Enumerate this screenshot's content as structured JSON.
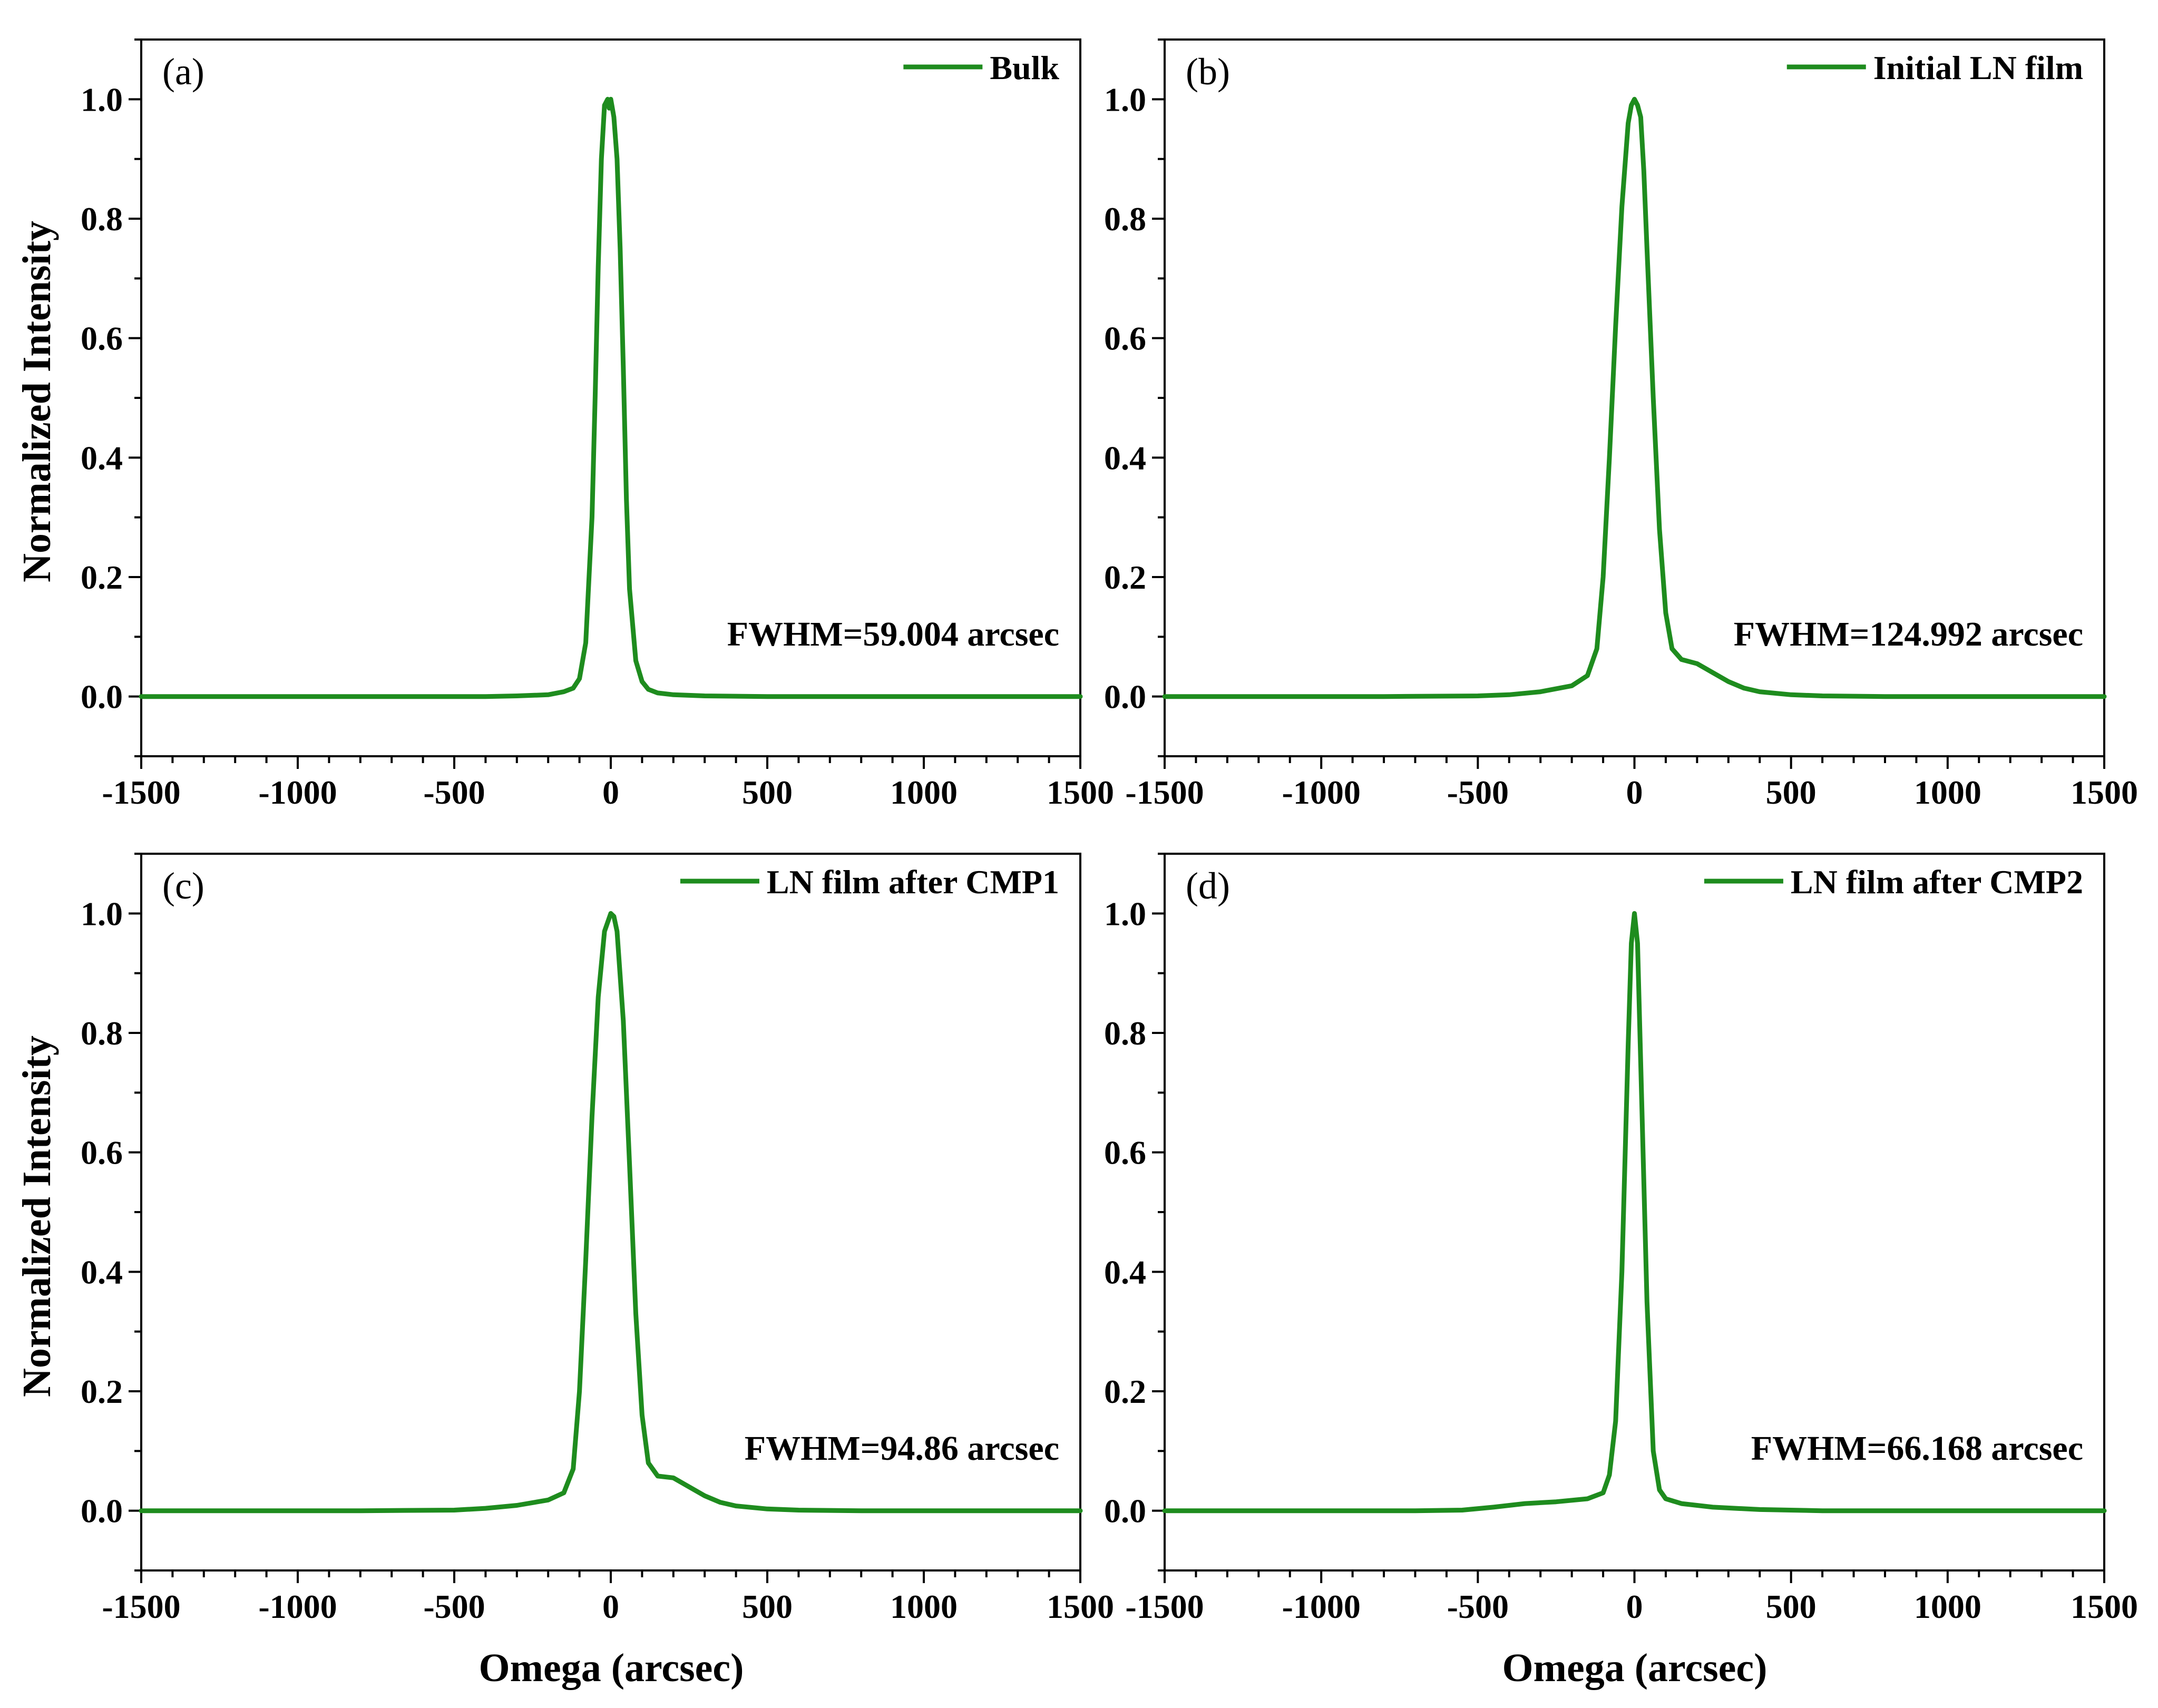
{
  "figure": {
    "ylabel": "Normalized Intensity",
    "xlabel": "Omega (arcsec)"
  },
  "style": {
    "line_color": "#1e8c1e",
    "axis_color": "#000000",
    "background": "#ffffff"
  },
  "chart_data": [
    {
      "type": "line",
      "panel_label": "(a)",
      "annotation": "FWHM=59.004 arcsec",
      "series": [
        {
          "name": "Bulk",
          "x": [
            -1500,
            -600,
            -400,
            -300,
            -200,
            -150,
            -120,
            -100,
            -80,
            -60,
            -50,
            -40,
            -30,
            -20,
            -10,
            -5,
            0,
            5,
            10,
            20,
            30,
            40,
            50,
            60,
            80,
            100,
            120,
            150,
            200,
            300,
            500,
            1500
          ],
          "y": [
            0,
            0,
            0,
            0.001,
            0.003,
            0.008,
            0.014,
            0.03,
            0.09,
            0.3,
            0.5,
            0.72,
            0.9,
            0.99,
            1.0,
            0.985,
            1.0,
            0.985,
            0.97,
            0.9,
            0.75,
            0.55,
            0.33,
            0.18,
            0.06,
            0.025,
            0.012,
            0.006,
            0.003,
            0.001,
            0,
            0
          ]
        }
      ],
      "xlim": [
        -1500,
        1500
      ],
      "ylim": [
        -0.1,
        1.1
      ],
      "xticks": [
        -1500,
        -1000,
        -500,
        0,
        500,
        1000,
        1500
      ],
      "yticks": [
        0.0,
        0.2,
        0.4,
        0.6,
        0.8,
        1.0
      ],
      "legend_position": "top-right"
    },
    {
      "type": "line",
      "panel_label": "(b)",
      "annotation": "FWHM=124.992 arcsec",
      "series": [
        {
          "name": "Initial LN film",
          "x": [
            -1500,
            -800,
            -500,
            -400,
            -300,
            -200,
            -150,
            -120,
            -100,
            -80,
            -60,
            -40,
            -20,
            -10,
            0,
            10,
            20,
            30,
            40,
            60,
            80,
            100,
            120,
            150,
            200,
            250,
            300,
            350,
            400,
            500,
            600,
            800,
            1500
          ],
          "y": [
            0,
            0,
            0.001,
            0.003,
            0.008,
            0.018,
            0.035,
            0.08,
            0.2,
            0.4,
            0.62,
            0.82,
            0.96,
            0.99,
            1.0,
            0.99,
            0.97,
            0.88,
            0.75,
            0.5,
            0.28,
            0.14,
            0.08,
            0.062,
            0.055,
            0.04,
            0.025,
            0.014,
            0.008,
            0.003,
            0.001,
            0,
            0
          ]
        }
      ],
      "xlim": [
        -1500,
        1500
      ],
      "ylim": [
        -0.1,
        1.1
      ],
      "xticks": [
        -1500,
        -1000,
        -500,
        0,
        500,
        1000,
        1500
      ],
      "yticks": [
        0.0,
        0.2,
        0.4,
        0.6,
        0.8,
        1.0
      ],
      "legend_position": "top-right"
    },
    {
      "type": "line",
      "panel_label": "(c)",
      "annotation": "FWHM=94.86 arcsec",
      "series": [
        {
          "name": "LN film after CMP1",
          "x": [
            -1500,
            -800,
            -500,
            -400,
            -300,
            -200,
            -150,
            -120,
            -100,
            -80,
            -60,
            -40,
            -20,
            0,
            10,
            20,
            40,
            60,
            80,
            100,
            120,
            150,
            200,
            250,
            300,
            350,
            400,
            500,
            600,
            800,
            1500
          ],
          "y": [
            0,
            0,
            0.001,
            0.004,
            0.009,
            0.018,
            0.03,
            0.07,
            0.2,
            0.42,
            0.66,
            0.86,
            0.97,
            1.0,
            0.995,
            0.97,
            0.82,
            0.58,
            0.33,
            0.16,
            0.08,
            0.058,
            0.055,
            0.04,
            0.025,
            0.014,
            0.008,
            0.003,
            0.001,
            0,
            0
          ]
        }
      ],
      "xlim": [
        -1500,
        1500
      ],
      "ylim": [
        -0.1,
        1.1
      ],
      "xticks": [
        -1500,
        -1000,
        -500,
        0,
        500,
        1000,
        1500
      ],
      "yticks": [
        0.0,
        0.2,
        0.4,
        0.6,
        0.8,
        1.0
      ],
      "legend_position": "top-right"
    },
    {
      "type": "line",
      "panel_label": "(d)",
      "annotation": "FWHM=66.168 arcsec",
      "series": [
        {
          "name": "LN film after CMP2",
          "x": [
            -1500,
            -700,
            -550,
            -450,
            -350,
            -250,
            -150,
            -100,
            -80,
            -60,
            -40,
            -20,
            -10,
            0,
            10,
            20,
            40,
            60,
            80,
            100,
            150,
            250,
            400,
            600,
            1500
          ],
          "y": [
            0,
            0,
            0.001,
            0.006,
            0.012,
            0.015,
            0.02,
            0.03,
            0.06,
            0.15,
            0.4,
            0.78,
            0.95,
            1.0,
            0.95,
            0.75,
            0.35,
            0.1,
            0.035,
            0.02,
            0.012,
            0.006,
            0.002,
            0,
            0
          ]
        }
      ],
      "xlim": [
        -1500,
        1500
      ],
      "ylim": [
        -0.1,
        1.1
      ],
      "xticks": [
        -1500,
        -1000,
        -500,
        0,
        500,
        1000,
        1500
      ],
      "yticks": [
        0.0,
        0.2,
        0.4,
        0.6,
        0.8,
        1.0
      ],
      "legend_position": "top-right"
    }
  ]
}
